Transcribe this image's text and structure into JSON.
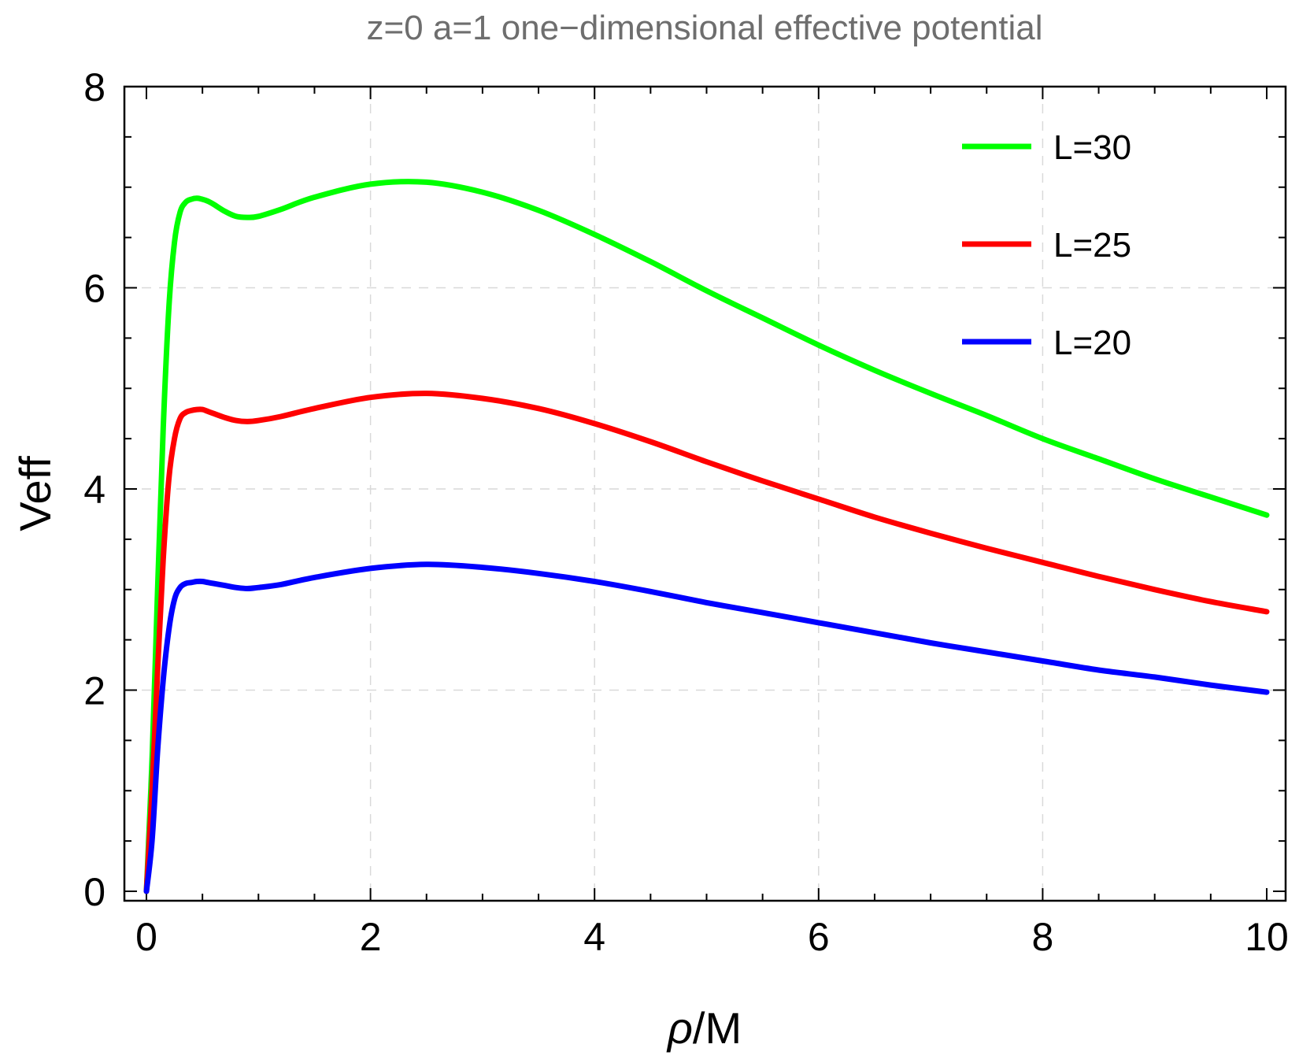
{
  "chart_data": {
    "type": "line",
    "title": "z=0 a=1 one−dimensional effective potential",
    "xlabel_symbol": "ρ",
    "xlabel_unit": "/M",
    "ylabel": "Veff",
    "xlim": [
      0,
      10
    ],
    "ylim": [
      0,
      8
    ],
    "xticks": [
      0,
      2,
      4,
      6,
      8,
      10
    ],
    "yticks": [
      0,
      2,
      4,
      6,
      8
    ],
    "xtick_labels": [
      "0",
      "2",
      "4",
      "6",
      "8",
      "10"
    ],
    "ytick_labels": [
      "0",
      "2",
      "4",
      "6",
      "8"
    ],
    "grid": true,
    "legend_position": "top-right",
    "series": [
      {
        "name": "L=30",
        "color": "#00ff00",
        "x": [
          0.0,
          0.05,
          0.1,
          0.15,
          0.2,
          0.25,
          0.3,
          0.35,
          0.4,
          0.45,
          0.5,
          0.55,
          0.6,
          0.7,
          0.8,
          0.9,
          1.0,
          1.2,
          1.5,
          2.0,
          2.5,
          3.0,
          3.5,
          4.0,
          4.5,
          5.0,
          5.5,
          6.0,
          6.5,
          7.0,
          7.5,
          8.0,
          8.5,
          9.0,
          9.5,
          10.0
        ],
        "y": [
          0.0,
          1.3,
          3.0,
          4.6,
          5.8,
          6.45,
          6.75,
          6.85,
          6.88,
          6.89,
          6.88,
          6.86,
          6.83,
          6.76,
          6.71,
          6.7,
          6.71,
          6.78,
          6.9,
          7.03,
          7.05,
          6.95,
          6.77,
          6.53,
          6.26,
          5.97,
          5.7,
          5.43,
          5.18,
          4.95,
          4.73,
          4.5,
          4.3,
          4.1,
          3.92,
          3.74
        ]
      },
      {
        "name": "L=25",
        "color": "#ff0000",
        "x": [
          0.0,
          0.05,
          0.1,
          0.15,
          0.2,
          0.25,
          0.3,
          0.35,
          0.4,
          0.45,
          0.5,
          0.55,
          0.6,
          0.7,
          0.8,
          0.9,
          1.0,
          1.2,
          1.5,
          2.0,
          2.5,
          3.0,
          3.5,
          4.0,
          4.5,
          5.0,
          5.5,
          6.0,
          6.5,
          7.0,
          7.5,
          8.0,
          8.5,
          9.0,
          9.5,
          10.0
        ],
        "y": [
          0.0,
          1.0,
          2.2,
          3.3,
          4.1,
          4.5,
          4.7,
          4.76,
          4.78,
          4.79,
          4.79,
          4.77,
          4.75,
          4.71,
          4.68,
          4.67,
          4.68,
          4.72,
          4.8,
          4.91,
          4.95,
          4.9,
          4.8,
          4.65,
          4.47,
          4.27,
          4.08,
          3.9,
          3.72,
          3.56,
          3.41,
          3.27,
          3.13,
          3.0,
          2.88,
          2.78
        ]
      },
      {
        "name": "L=20",
        "color": "#0000ff",
        "x": [
          0.0,
          0.05,
          0.1,
          0.15,
          0.2,
          0.25,
          0.3,
          0.35,
          0.4,
          0.45,
          0.5,
          0.55,
          0.6,
          0.7,
          0.8,
          0.9,
          1.0,
          1.2,
          1.5,
          2.0,
          2.5,
          3.0,
          3.5,
          4.0,
          4.5,
          5.0,
          5.5,
          6.0,
          6.5,
          7.0,
          7.5,
          8.0,
          8.5,
          9.0,
          9.5,
          10.0
        ],
        "y": [
          0.0,
          0.5,
          1.4,
          2.1,
          2.6,
          2.9,
          3.02,
          3.06,
          3.07,
          3.08,
          3.08,
          3.07,
          3.06,
          3.04,
          3.02,
          3.01,
          3.02,
          3.05,
          3.12,
          3.21,
          3.25,
          3.22,
          3.16,
          3.08,
          2.98,
          2.87,
          2.77,
          2.67,
          2.57,
          2.47,
          2.38,
          2.29,
          2.2,
          2.13,
          2.05,
          1.98
        ]
      }
    ]
  }
}
